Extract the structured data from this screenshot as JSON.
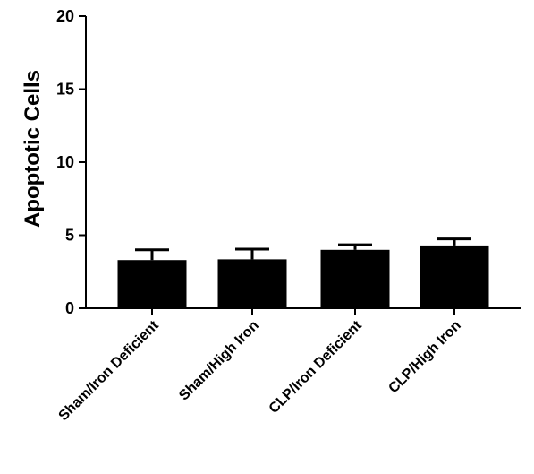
{
  "chart_data": {
    "type": "bar",
    "title": "",
    "xlabel": "",
    "ylabel": "Apoptotic Cells",
    "ylim": [
      0,
      20
    ],
    "yticks": [
      0,
      5,
      10,
      15,
      20
    ],
    "categories": [
      "Sham/Iron Deficient",
      "Sham/High Iron",
      "CLP/Iron Deficient",
      "CLP/High Iron"
    ],
    "values": [
      3.3,
      3.35,
      4.0,
      4.3
    ],
    "errors": [
      0.7,
      0.7,
      0.35,
      0.45
    ],
    "bar_color": "#000000",
    "grid": false,
    "legend": "none"
  }
}
